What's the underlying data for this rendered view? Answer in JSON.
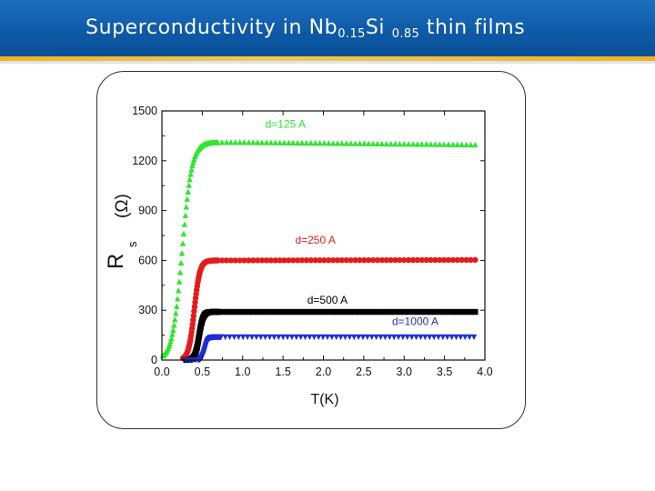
{
  "slide": {
    "title_main": "Superconductivity in Nb",
    "title_sub1": "0.15",
    "title_mid": "Si",
    "title_sub2": "0.85",
    "title_end": "thin films"
  },
  "chart_data": {
    "type": "scatter",
    "xlabel": "T(K)",
    "ylabel_main": "R",
    "ylabel_sub": "s",
    "ylabel_unit": "(Ω)",
    "xlim": [
      0,
      4.0
    ],
    "ylim": [
      0,
      1500
    ],
    "x_ticks": [
      "0.0",
      "0.5",
      "1.0",
      "1.5",
      "2.0",
      "2.5",
      "3.0",
      "3.5",
      "4.0"
    ],
    "y_ticks": [
      "0",
      "300",
      "600",
      "900",
      "1200",
      "1500"
    ],
    "series": [
      {
        "name": "d=125 A",
        "color": "#2ee62e",
        "marker": "triangle-up",
        "Tc": 0.25,
        "width": 0.06,
        "plateau": 1310,
        "tail": 1295,
        "x_start": 0.15
      },
      {
        "name": "d=250 A",
        "color": "#e41a1a",
        "marker": "circle",
        "Tc": 0.4,
        "width": 0.035,
        "plateau": 600,
        "tail": 603,
        "x_start": 0.3
      },
      {
        "name": "d=500 A",
        "color": "#000000",
        "marker": "square",
        "Tc": 0.46,
        "width": 0.025,
        "plateau": 290,
        "tail": 290,
        "x_start": 0.3
      },
      {
        "name": "d=1000 A",
        "color": "#1f2fd6",
        "marker": "triangle-down",
        "Tc": 0.53,
        "width": 0.02,
        "plateau": 140,
        "tail": 140,
        "x_start": 0.3
      }
    ],
    "annotations": [
      {
        "text": "d=125 A",
        "x": 1.28,
        "y": 1400,
        "color": "#2ee62e"
      },
      {
        "text": "d=250 A",
        "x": 1.65,
        "y": 700,
        "color": "#e41a1a"
      },
      {
        "text": "d=500 A",
        "x": 1.8,
        "y": 340,
        "color": "#000000"
      },
      {
        "text": "d=1000 A",
        "x": 2.85,
        "y": 210,
        "color": "#1f2fd6"
      }
    ]
  }
}
